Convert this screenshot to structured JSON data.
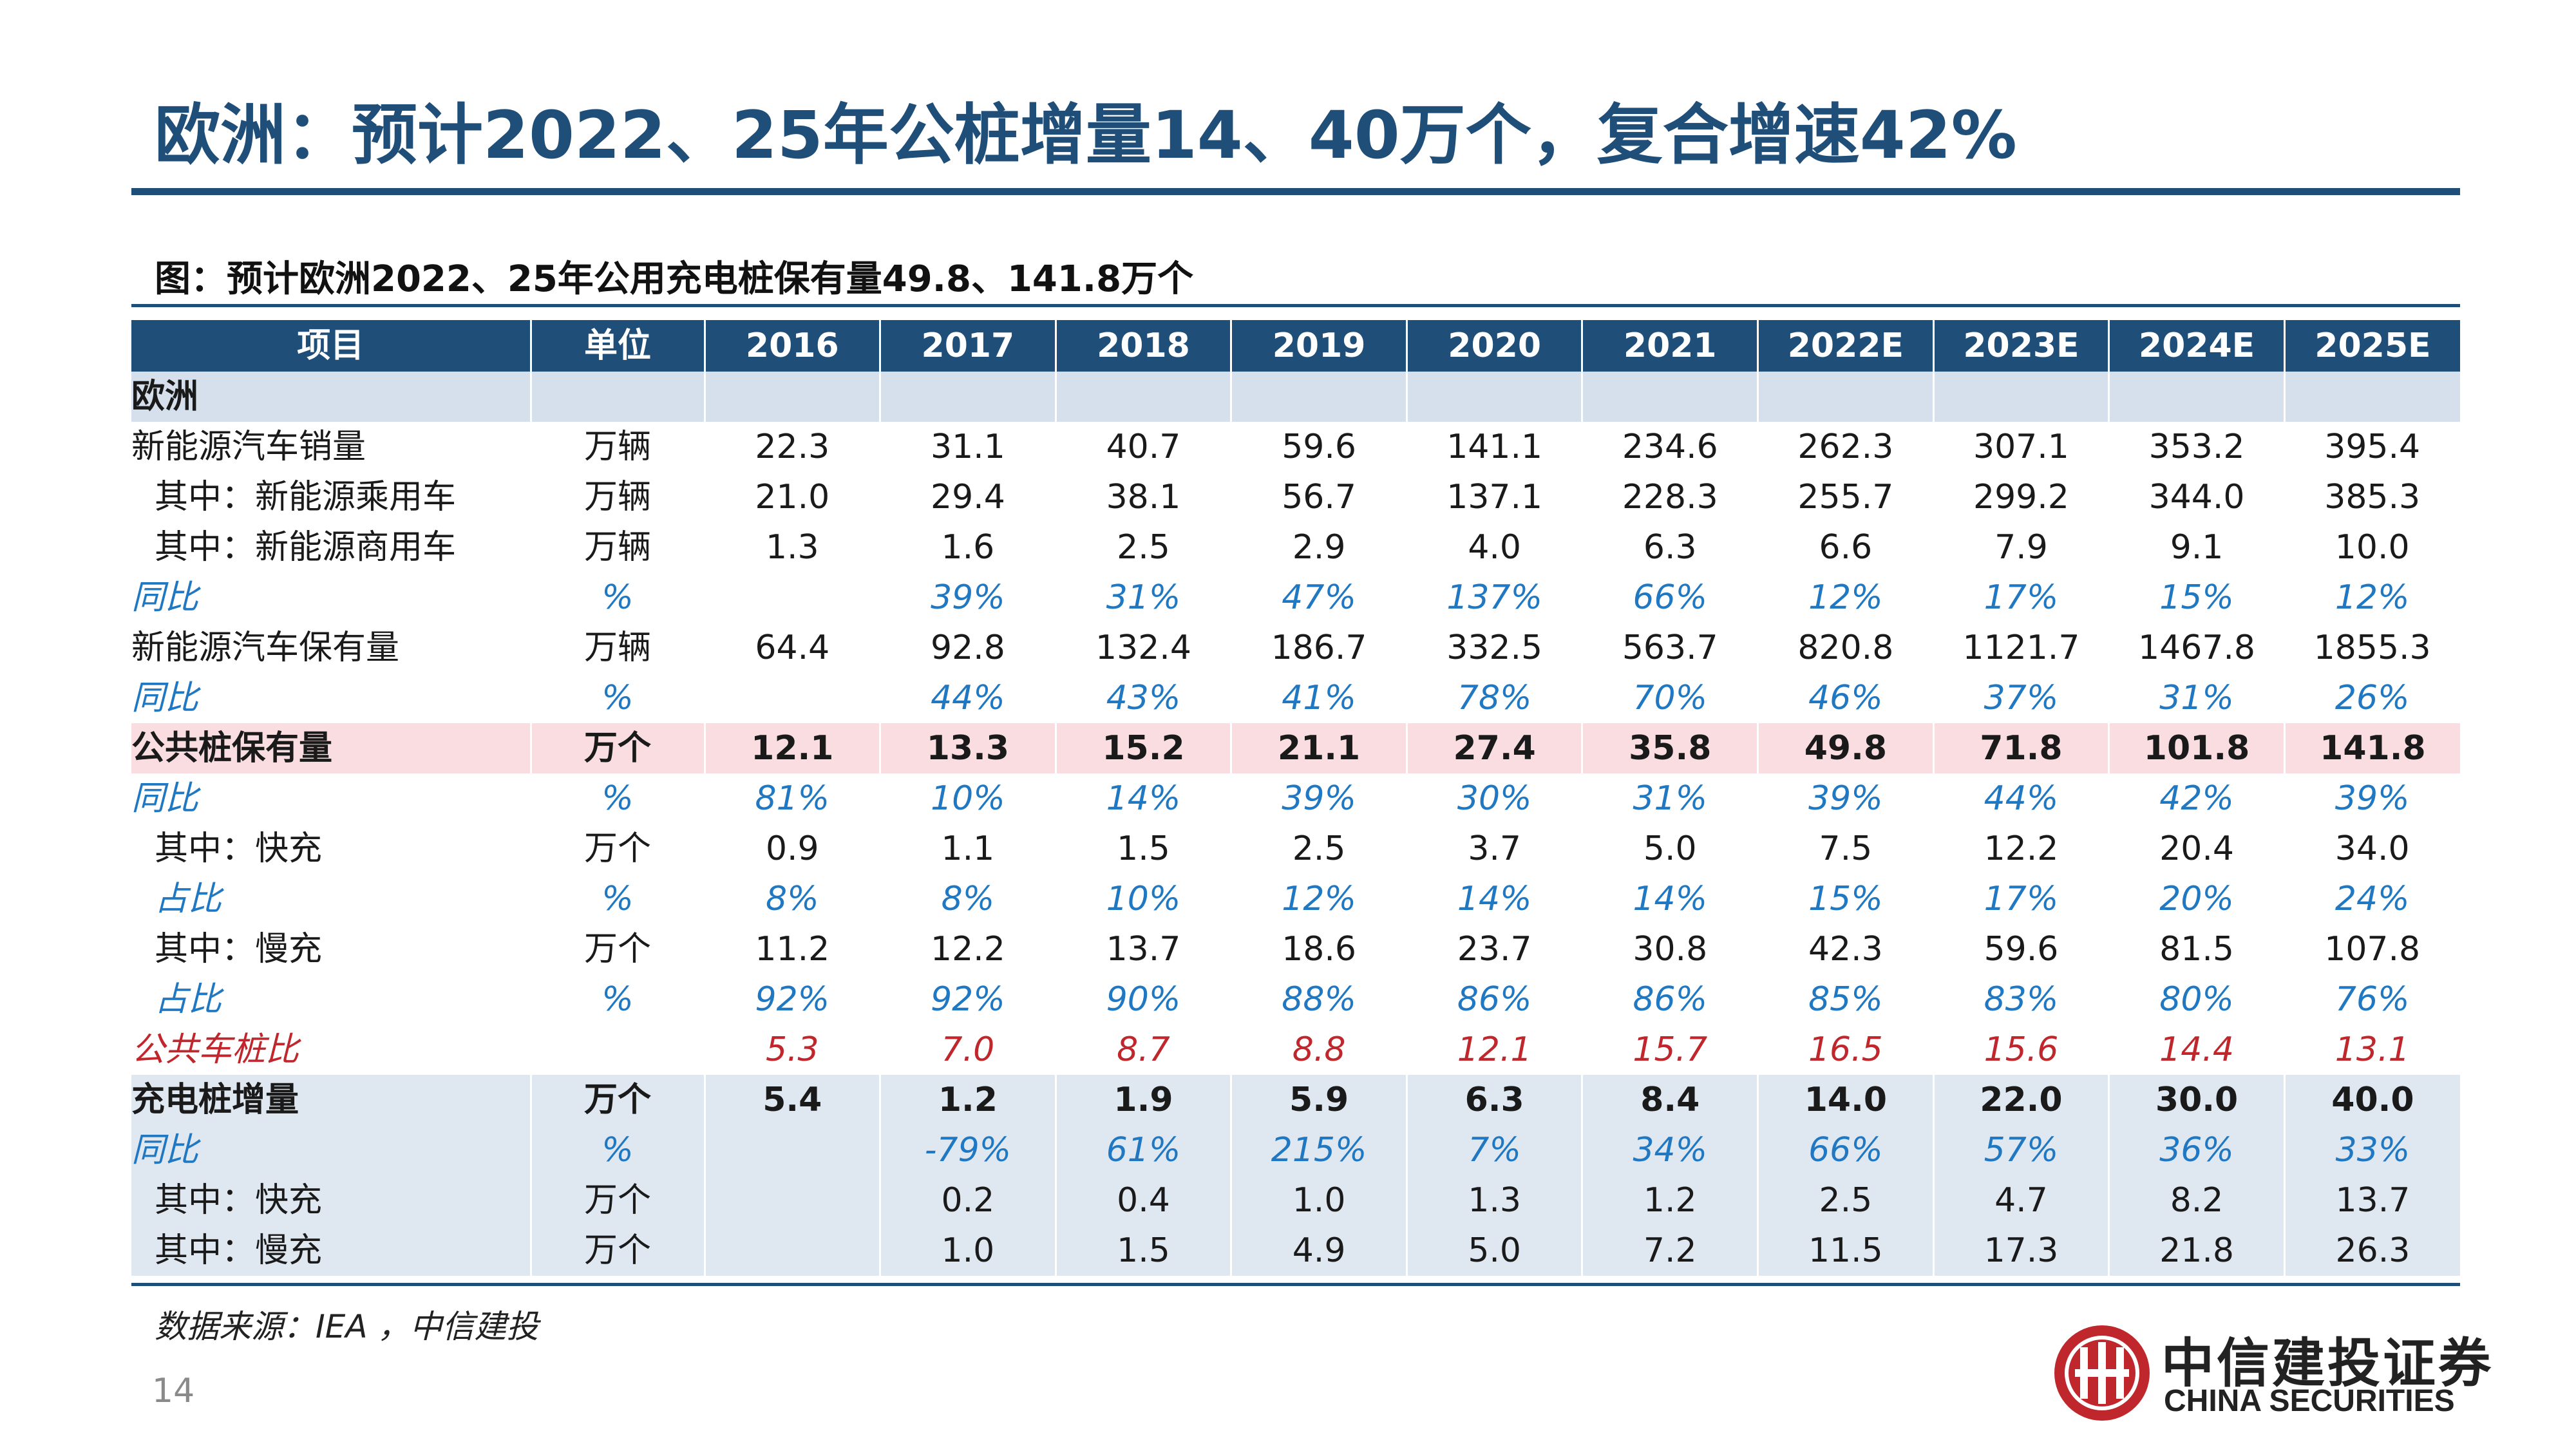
{
  "title": "欧洲：预计2022、25年公桩增量14、40万个，复合增速42%",
  "figure_caption": "图：预计欧洲2022、25年公用充电桩保有量49.8、141.8万个",
  "table": {
    "headers": [
      "项目",
      "单位",
      "2016",
      "2017",
      "2018",
      "2019",
      "2020",
      "2021",
      "2022E",
      "2023E",
      "2024E",
      "2025E"
    ],
    "section_label": "欧洲",
    "rows": [
      {
        "label": "新能源汽车销量",
        "unit": "万辆",
        "values": [
          "22.3",
          "31.1",
          "40.7",
          "59.6",
          "141.1",
          "234.6",
          "262.3",
          "307.1",
          "353.2",
          "395.4"
        ]
      },
      {
        "label": "其中：新能源乘用车",
        "unit": "万辆",
        "values": [
          "21.0",
          "29.4",
          "38.1",
          "56.7",
          "137.1",
          "228.3",
          "255.7",
          "299.2",
          "344.0",
          "385.3"
        ]
      },
      {
        "label": "其中：新能源商用车",
        "unit": "万辆",
        "values": [
          "1.3",
          "1.6",
          "2.5",
          "2.9",
          "4.0",
          "6.3",
          "6.6",
          "7.9",
          "9.1",
          "10.0"
        ]
      },
      {
        "label": "同比",
        "unit": "%",
        "values": [
          "",
          "39%",
          "31%",
          "47%",
          "137%",
          "66%",
          "12%",
          "17%",
          "15%",
          "12%"
        ]
      },
      {
        "label": "新能源汽车保有量",
        "unit": "万辆",
        "values": [
          "64.4",
          "92.8",
          "132.4",
          "186.7",
          "332.5",
          "563.7",
          "820.8",
          "1121.7",
          "1467.8",
          "1855.3"
        ]
      },
      {
        "label": "同比",
        "unit": "%",
        "values": [
          "",
          "44%",
          "43%",
          "41%",
          "78%",
          "70%",
          "46%",
          "37%",
          "31%",
          "26%"
        ]
      },
      {
        "label": "公共桩保有量",
        "unit": "万个",
        "values": [
          "12.1",
          "13.3",
          "15.2",
          "21.1",
          "27.4",
          "35.8",
          "49.8",
          "71.8",
          "101.8",
          "141.8"
        ]
      },
      {
        "label": "同比",
        "unit": "%",
        "values": [
          "81%",
          "10%",
          "14%",
          "39%",
          "30%",
          "31%",
          "39%",
          "44%",
          "42%",
          "39%"
        ]
      },
      {
        "label": "其中：快充",
        "unit": "万个",
        "values": [
          "0.9",
          "1.1",
          "1.5",
          "2.5",
          "3.7",
          "5.0",
          "7.5",
          "12.2",
          "20.4",
          "34.0"
        ]
      },
      {
        "label": "占比",
        "unit": "%",
        "values": [
          "8%",
          "8%",
          "10%",
          "12%",
          "14%",
          "14%",
          "15%",
          "17%",
          "20%",
          "24%"
        ]
      },
      {
        "label": "其中：慢充",
        "unit": "万个",
        "values": [
          "11.2",
          "12.2",
          "13.7",
          "18.6",
          "23.7",
          "30.8",
          "42.3",
          "59.6",
          "81.5",
          "107.8"
        ]
      },
      {
        "label": "占比",
        "unit": "%",
        "values": [
          "92%",
          "92%",
          "90%",
          "88%",
          "86%",
          "86%",
          "85%",
          "83%",
          "80%",
          "76%"
        ]
      },
      {
        "label": "公共车桩比",
        "unit": "",
        "values": [
          "5.3",
          "7.0",
          "8.7",
          "8.8",
          "12.1",
          "15.7",
          "16.5",
          "15.6",
          "14.4",
          "13.1"
        ]
      },
      {
        "label": "充电桩增量",
        "unit": "万个",
        "values": [
          "5.4",
          "1.2",
          "1.9",
          "5.9",
          "6.3",
          "8.4",
          "14.0",
          "22.0",
          "30.0",
          "40.0"
        ]
      },
      {
        "label": "同比",
        "unit": "%",
        "values": [
          "",
          "-79%",
          "61%",
          "215%",
          "7%",
          "34%",
          "66%",
          "57%",
          "36%",
          "33%"
        ]
      },
      {
        "label": "其中：快充",
        "unit": "万个",
        "values": [
          "",
          "0.2",
          "0.4",
          "1.0",
          "1.3",
          "1.2",
          "2.5",
          "4.7",
          "8.2",
          "13.7"
        ]
      },
      {
        "label": "其中：慢充",
        "unit": "万个",
        "values": [
          "",
          "1.0",
          "1.5",
          "4.9",
          "5.0",
          "7.2",
          "11.5",
          "17.3",
          "21.8",
          "26.3"
        ]
      }
    ]
  },
  "source_note": "数据来源：IEA ，中信建投",
  "page_number": "14",
  "brand": {
    "name_cn": "中信建投证券",
    "name_en": "CHINA SECURITIES",
    "logo_color": "#c0272d"
  },
  "colors": {
    "title": "#1f4e79",
    "header_bg": "#1f4e79",
    "section_bg": "#d6e0ec",
    "highlight_pink": "#f9dde0",
    "highlight_blue": "#dfe7f1",
    "italic_blue": "#1f78c1",
    "italic_red": "#c0272d"
  }
}
